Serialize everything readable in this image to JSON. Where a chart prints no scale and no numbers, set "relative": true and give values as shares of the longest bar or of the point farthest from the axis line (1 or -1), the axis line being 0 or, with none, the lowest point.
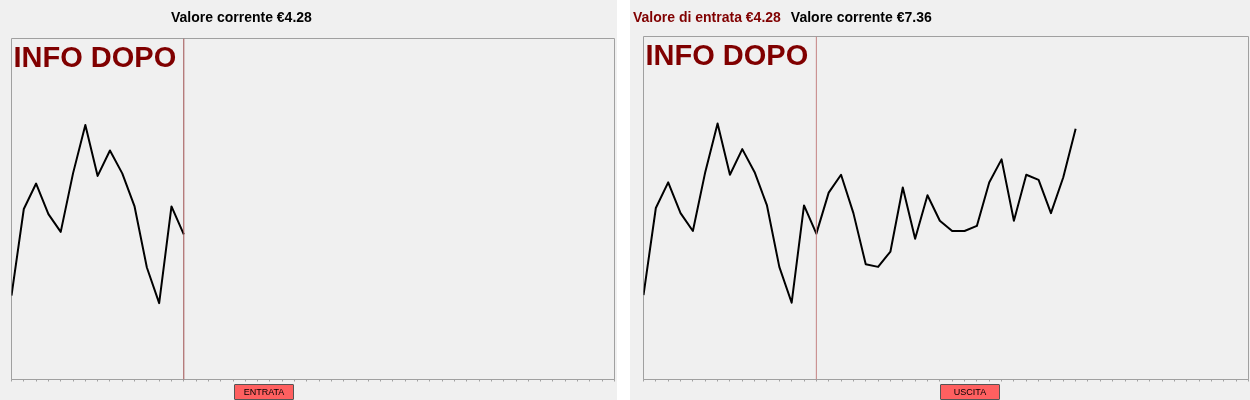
{
  "chart_data": [
    {
      "type": "line",
      "title": "Valore corrente €4.28",
      "relative": true,
      "categories": [
        null,
        null,
        null,
        null,
        null,
        null,
        null,
        null,
        null,
        null,
        null,
        null,
        null,
        null,
        null,
        null,
        null,
        null,
        null,
        null,
        null,
        null,
        null,
        null,
        null,
        null,
        null,
        null,
        null,
        null,
        null,
        null,
        null,
        null,
        null,
        null,
        null,
        null,
        null,
        null,
        null,
        null,
        null,
        null,
        null,
        null,
        null,
        null,
        null,
        null
      ],
      "series": [
        {
          "color": "#000000",
          "values": [
            0.33,
            0.67,
            0.77,
            0.65,
            0.58,
            0.81,
            1.0,
            0.8,
            0.9,
            0.81,
            0.68,
            0.44,
            0.3,
            0.68,
            0.57,
            null,
            null,
            null,
            null,
            null,
            null,
            null,
            null,
            null,
            null,
            null,
            null,
            null,
            null,
            null,
            null,
            null,
            null,
            null,
            null,
            null,
            null,
            null,
            null,
            null,
            null,
            null,
            null,
            null,
            null,
            null,
            null,
            null,
            null,
            null
          ]
        }
      ],
      "annotations": [
        "INFO DOPO",
        "ENTRATA"
      ]
    },
    {
      "type": "line",
      "title": "Valore di entrata €4.28",
      "subtitle": "Valore corrente €7.36",
      "relative": true,
      "categories": [
        null,
        null,
        null,
        null,
        null,
        null,
        null,
        null,
        null,
        null,
        null,
        null,
        null,
        null,
        null,
        null,
        null,
        null,
        null,
        null,
        null,
        null,
        null,
        null,
        null,
        null,
        null,
        null,
        null,
        null,
        null,
        null,
        null,
        null,
        null,
        null,
        null,
        null,
        null,
        null,
        null,
        null,
        null,
        null,
        null,
        null,
        null,
        null,
        null,
        null
      ],
      "series": [
        {
          "color": "#000000",
          "values": [
            0.33,
            0.67,
            0.77,
            0.65,
            0.58,
            0.81,
            1.0,
            0.8,
            0.9,
            0.81,
            0.68,
            0.44,
            0.3,
            0.68,
            0.57,
            0.73,
            0.8,
            0.65,
            0.45,
            0.44,
            0.5,
            0.75,
            0.55,
            0.72,
            0.62,
            0.58,
            0.58,
            0.6,
            0.77,
            0.86,
            0.62,
            0.8,
            0.78,
            0.65,
            0.79,
            0.98,
            null,
            null,
            null,
            null,
            null,
            null,
            null,
            null,
            null,
            null,
            null,
            null,
            null,
            null
          ]
        }
      ],
      "annotations": [
        "INFO DOPO",
        "USCITA"
      ]
    }
  ]
}
